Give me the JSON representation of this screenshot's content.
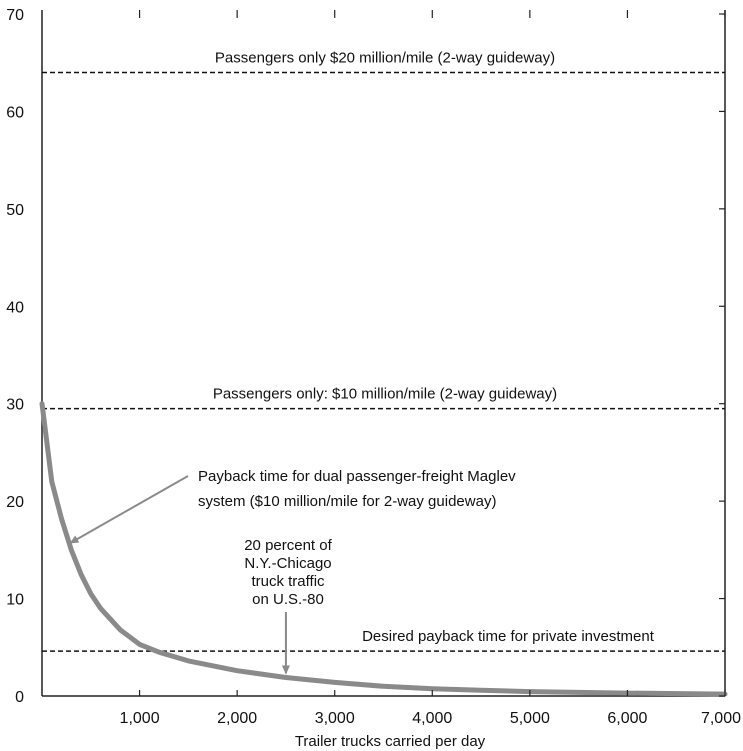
{
  "chart_data": {
    "type": "line",
    "title": "",
    "xlabel": "Trailer trucks carried per day",
    "ylabel": "",
    "xlim": [
      0,
      7000
    ],
    "ylim": [
      0,
      70
    ],
    "x_ticks": [
      1000,
      2000,
      3000,
      4000,
      5000,
      6000,
      7000
    ],
    "x_tick_labels": [
      "1,000",
      "2,000",
      "3,000",
      "4,000",
      "5,000",
      "6,000",
      "7,000"
    ],
    "y_ticks": [
      0,
      10,
      20,
      30,
      40,
      50,
      60,
      70
    ],
    "y_tick_labels": [
      "0",
      "10",
      "20",
      "30",
      "40",
      "50",
      "60",
      "70"
    ],
    "grid": false,
    "reference_lines": [
      {
        "y": 64,
        "label": "Passengers only $20 million/mile (2-way guideway)"
      },
      {
        "y": 29.5,
        "label": "Passengers only: $10 million/mile (2-way guideway)"
      },
      {
        "y": 4.6,
        "label": "Desired payback time for private investment"
      }
    ],
    "series": [
      {
        "x": [
          0,
          100,
          200,
          300,
          400,
          500,
          600,
          800,
          1000,
          1200,
          1500,
          2000,
          2500,
          3000,
          3500,
          4000,
          4500,
          5000,
          6000,
          7000
        ],
        "y": [
          30,
          22,
          18.2,
          15,
          12.5,
          10.5,
          9,
          6.8,
          5.3,
          4.5,
          3.6,
          2.6,
          1.9,
          1.4,
          1.0,
          0.75,
          0.6,
          0.45,
          0.3,
          0.2
        ]
      }
    ],
    "annotations": [
      {
        "lines": [
          "Payback time for dual passenger-freight Maglev",
          "system ($10 million/mile for 2-way guideway)"
        ],
        "arrow_to": [
          270,
          15.5
        ]
      },
      {
        "lines": [
          "20 percent of",
          "N.Y.-Chicago",
          "truck traffic",
          "on U.S.-80"
        ],
        "arrow_to": [
          2500,
          1.9
        ]
      }
    ]
  },
  "colors": {
    "curve": "#8a8a8a",
    "arrow": "#8a8a8a",
    "reference": "#111111",
    "axis": "#222222"
  }
}
